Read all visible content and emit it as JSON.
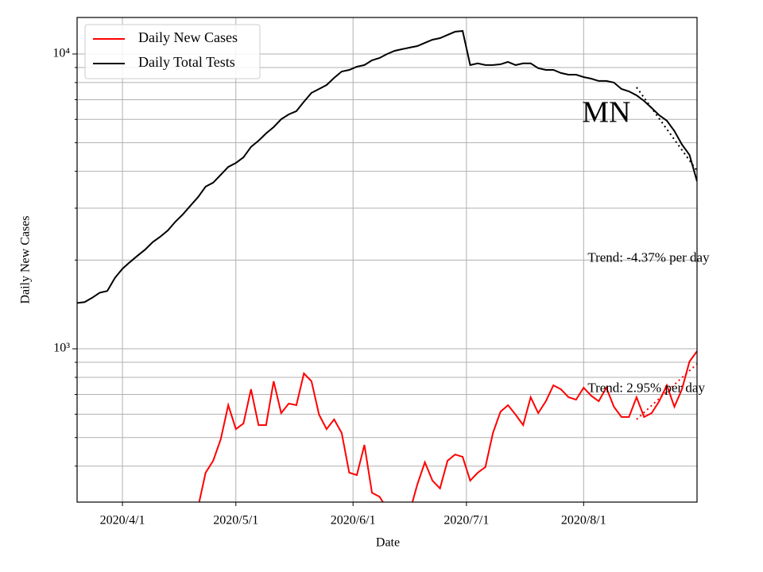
{
  "chart_data": {
    "type": "line",
    "ylabel": "Daily New Cases",
    "xlabel": "Date",
    "log_y": true,
    "grid": true,
    "legend": "upper left",
    "xlim": [
      "2020/3/20",
      "2020/8/31"
    ],
    "xticks": [
      "2020/4/1",
      "2020/5/1",
      "2020/6/1",
      "2020/7/1",
      "2020/8/1"
    ],
    "ylim": [
      302,
      13300
    ],
    "yticks": [
      {
        "value": 1000,
        "label": "10³"
      },
      {
        "value": 10000,
        "label": "10⁴"
      }
    ],
    "yminorticks": [
      400,
      500,
      600,
      700,
      800,
      900,
      2000,
      3000,
      4000,
      5000,
      6000,
      7000,
      8000,
      9000
    ],
    "x": [
      "2020/3/20",
      "2020/3/22",
      "2020/3/24",
      "2020/3/26",
      "2020/3/28",
      "2020/3/30",
      "2020/4/1",
      "2020/4/3",
      "2020/4/5",
      "2020/4/7",
      "2020/4/9",
      "2020/4/11",
      "2020/4/13",
      "2020/4/15",
      "2020/4/17",
      "2020/4/19",
      "2020/4/21",
      "2020/4/23",
      "2020/4/25",
      "2020/4/27",
      "2020/4/29",
      "2020/5/1",
      "2020/5/3",
      "2020/5/5",
      "2020/5/7",
      "2020/5/9",
      "2020/5/11",
      "2020/5/13",
      "2020/5/15",
      "2020/5/17",
      "2020/5/19",
      "2020/5/21",
      "2020/5/23",
      "2020/5/25",
      "2020/5/27",
      "2020/5/29",
      "2020/5/31",
      "2020/6/2",
      "2020/6/4",
      "2020/6/6",
      "2020/6/8",
      "2020/6/10",
      "2020/6/12",
      "2020/6/14",
      "2020/6/16",
      "2020/6/18",
      "2020/6/20",
      "2020/6/22",
      "2020/6/24",
      "2020/6/26",
      "2020/6/28",
      "2020/6/30",
      "2020/7/2",
      "2020/7/4",
      "2020/7/6",
      "2020/7/8",
      "2020/7/10",
      "2020/7/12",
      "2020/7/14",
      "2020/7/16",
      "2020/7/18",
      "2020/7/20",
      "2020/7/22",
      "2020/7/24",
      "2020/7/26",
      "2020/7/28",
      "2020/7/30",
      "2020/8/1",
      "2020/8/3",
      "2020/8/5",
      "2020/8/7",
      "2020/8/9",
      "2020/8/11",
      "2020/8/13",
      "2020/8/15",
      "2020/8/17",
      "2020/8/19",
      "2020/8/21",
      "2020/8/23",
      "2020/8/25",
      "2020/8/27",
      "2020/8/29",
      "2020/8/31"
    ],
    "series": [
      {
        "name": "Daily New Cases",
        "color": "#ff0000",
        "values": [
          null,
          null,
          null,
          null,
          null,
          null,
          null,
          null,
          null,
          null,
          null,
          null,
          null,
          null,
          null,
          null,
          290,
          380,
          417,
          493,
          644,
          534,
          558,
          729,
          551,
          551,
          776,
          605,
          652,
          644,
          825,
          776,
          598,
          534,
          576,
          518,
          380,
          373,
          472,
          325,
          315,
          287,
          250,
          250,
          280,
          346,
          412,
          357,
          336,
          417,
          438,
          430,
          357,
          380,
          397,
          518,
          612,
          644,
          598,
          551,
          685,
          605,
          664,
          752,
          729,
          685,
          672,
          738,
          693,
          664,
          738,
          636,
          587,
          587,
          685,
          587,
          605,
          664,
          752,
          636,
          729,
          905,
          981
        ]
      },
      {
        "name": "Daily Total Tests",
        "color": "#000000",
        "values": [
          1430,
          1440,
          1490,
          1550,
          1570,
          1740,
          1870,
          1970,
          2070,
          2170,
          2300,
          2400,
          2520,
          2700,
          2860,
          3060,
          3270,
          3550,
          3660,
          3890,
          4140,
          4270,
          4460,
          4840,
          5080,
          5380,
          5650,
          6010,
          6240,
          6400,
          6890,
          7380,
          7610,
          7850,
          8300,
          8720,
          8830,
          9060,
          9170,
          9520,
          9690,
          10000,
          10250,
          10380,
          10510,
          10640,
          10910,
          11180,
          11320,
          11610,
          11900,
          11970,
          9170,
          9290,
          9170,
          9170,
          9230,
          9400,
          9170,
          9290,
          9290,
          8950,
          8830,
          8830,
          8620,
          8510,
          8510,
          8350,
          8250,
          8100,
          8100,
          8000,
          7610,
          7470,
          7240,
          6930,
          6560,
          6200,
          5940,
          5480,
          4930,
          4550,
          3700
        ]
      }
    ],
    "trends": [
      {
        "color": "#000000",
        "x": [
          "2020/8/15",
          "2020/8/31"
        ],
        "values": [
          7710,
          4016
        ]
      },
      {
        "color": "#ff0000",
        "x": [
          "2020/8/15",
          "2020/8/31"
        ],
        "values": [
          576,
          889
        ]
      }
    ],
    "annotations": [
      {
        "text": "MN",
        "x": "2020/8/7",
        "y": 6200,
        "size": "big"
      },
      {
        "text": "Trend: -4.37% per day",
        "x": "2020/8/1",
        "y": 2020,
        "size": "small"
      },
      {
        "text": "Trend: 2.95% per day",
        "x": "2020/8/1",
        "y": 730,
        "size": "small"
      }
    ]
  }
}
